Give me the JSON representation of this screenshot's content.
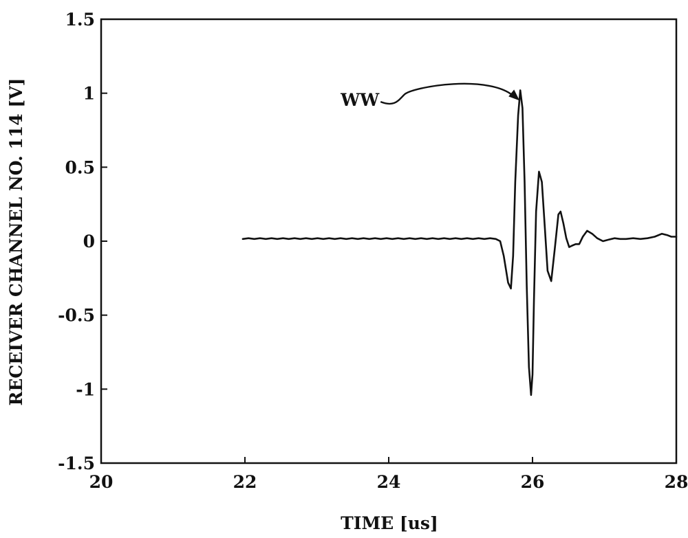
{
  "chart_data": {
    "type": "line",
    "xlabel": "TIME [us]",
    "ylabel": "RECEIVER CHANNEL NO. 114 [V]",
    "xlim": [
      20,
      28
    ],
    "ylim": [
      -1.5,
      1.5
    ],
    "x_ticks": [
      20,
      22,
      24,
      26,
      28
    ],
    "y_ticks": [
      1.5,
      1,
      0.5,
      0,
      -0.5,
      -1,
      -1.5
    ],
    "x_tick_labels": [
      "20",
      "22",
      "24",
      "26",
      "28"
    ],
    "y_tick_labels": [
      "1.5",
      "1",
      "0.5",
      "0",
      "-0.5",
      "-1",
      "-1.5"
    ],
    "grid": false,
    "series": [
      {
        "color": "#111111",
        "x": [
          21.97,
          22.05,
          22.13,
          22.21,
          22.29,
          22.37,
          22.45,
          22.53,
          22.61,
          22.69,
          22.77,
          22.85,
          22.93,
          23.01,
          23.09,
          23.17,
          23.25,
          23.33,
          23.41,
          23.49,
          23.57,
          23.65,
          23.73,
          23.81,
          23.89,
          23.97,
          24.05,
          24.13,
          24.21,
          24.29,
          24.37,
          24.45,
          24.53,
          24.61,
          24.69,
          24.77,
          24.85,
          24.93,
          25.01,
          25.09,
          25.17,
          25.25,
          25.33,
          25.41,
          25.49,
          25.55,
          25.6,
          25.66,
          25.7,
          25.73,
          25.76,
          25.8,
          25.83,
          25.86,
          25.89,
          25.92,
          25.95,
          25.98,
          26.0,
          26.02,
          26.05,
          26.09,
          26.13,
          26.17,
          26.21,
          26.26,
          26.31,
          26.36,
          26.39,
          26.43,
          26.47,
          26.51,
          26.55,
          26.6,
          26.65,
          26.7,
          26.76,
          26.83,
          26.9,
          26.98,
          27.06,
          27.14,
          27.22,
          27.3,
          27.4,
          27.5,
          27.6,
          27.7,
          27.8,
          27.88,
          27.93,
          27.97,
          28.0
        ],
        "values": [
          0.015,
          0.02,
          0.015,
          0.02,
          0.015,
          0.02,
          0.015,
          0.02,
          0.015,
          0.02,
          0.015,
          0.02,
          0.015,
          0.02,
          0.015,
          0.02,
          0.015,
          0.02,
          0.015,
          0.02,
          0.015,
          0.02,
          0.015,
          0.02,
          0.015,
          0.02,
          0.015,
          0.02,
          0.015,
          0.02,
          0.015,
          0.02,
          0.015,
          0.02,
          0.015,
          0.02,
          0.015,
          0.02,
          0.015,
          0.02,
          0.015,
          0.02,
          0.015,
          0.02,
          0.015,
          0.0,
          -0.1,
          -0.28,
          -0.32,
          -0.1,
          0.4,
          0.85,
          1.02,
          0.9,
          0.4,
          -0.3,
          -0.85,
          -1.04,
          -0.9,
          -0.4,
          0.2,
          0.47,
          0.4,
          0.1,
          -0.2,
          -0.27,
          -0.05,
          0.18,
          0.2,
          0.12,
          0.02,
          -0.04,
          -0.03,
          -0.02,
          -0.02,
          0.03,
          0.07,
          0.05,
          0.02,
          0.0,
          0.01,
          0.02,
          0.015,
          0.015,
          0.02,
          0.015,
          0.02,
          0.03,
          0.05,
          0.04,
          0.03,
          0.03,
          0.03
        ]
      }
    ],
    "annotations": [
      {
        "text": "WW",
        "point_x": 25.82,
        "point_y": 0.95,
        "text_x": 23.6,
        "text_y": 0.97
      }
    ]
  }
}
